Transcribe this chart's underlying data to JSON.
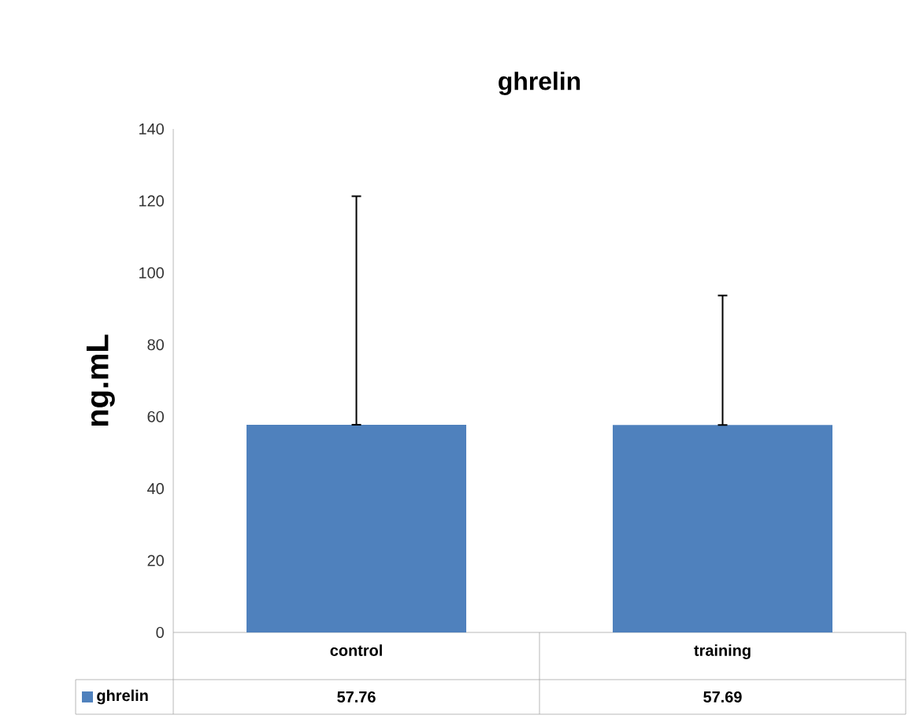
{
  "chart_data": {
    "type": "bar",
    "title": "ghrelin",
    "ylabel": "ng.mL",
    "categories": [
      "control",
      "training"
    ],
    "series": [
      {
        "name": "ghrelin",
        "color": "#4f81bd",
        "values": [
          57.76,
          57.69
        ],
        "errors": [
          [
            57.76,
            121.3
          ],
          [
            57.69,
            93.7
          ]
        ]
      }
    ],
    "ylim": [
      0,
      140
    ],
    "yticks": [
      0,
      20,
      40,
      60,
      80,
      100,
      120,
      140
    ],
    "data_labels": true
  }
}
